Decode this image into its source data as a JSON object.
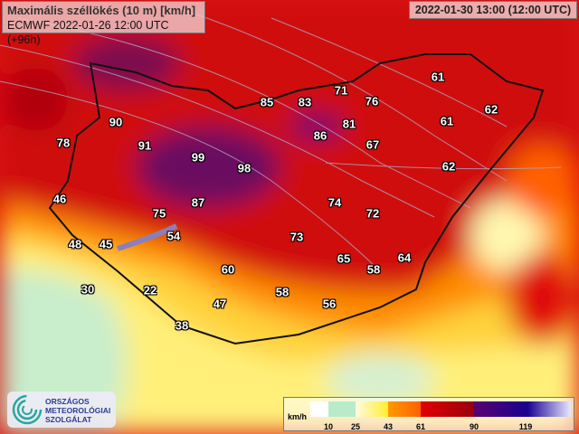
{
  "header": {
    "title": "Maximális széllökés (10 m) [km/h]",
    "model_run": "ECMWF 2022-01-26 12:00 UTC (+96h)",
    "valid_time": "2022-01-30 13:00 (12:00 UTC)"
  },
  "values": [
    "90",
    "78",
    "91",
    "99",
    "98",
    "85",
    "83",
    "71",
    "76",
    "81",
    "86",
    "67",
    "61",
    "61",
    "62",
    "62",
    "46",
    "87",
    "75",
    "74",
    "72",
    "54",
    "48",
    "45",
    "73",
    "65",
    "58",
    "64",
    "60",
    "30",
    "22",
    "58",
    "47",
    "56",
    "38"
  ],
  "legend": {
    "unit": "km/h",
    "ticks": [
      "10",
      "25",
      "43",
      "61",
      "90",
      "119"
    ],
    "colors": [
      "#ffffff",
      "#b8ecc8",
      "#fff27a",
      "#ff9a00",
      "#e20000",
      "#9a0010",
      "#5a0070",
      "#1a0090",
      "#e8e8ff"
    ]
  },
  "logo": {
    "line1": "ORSZÁGOS",
    "line2": "METEOROLÓGIAI",
    "line3": "SZOLGÁLAT"
  }
}
